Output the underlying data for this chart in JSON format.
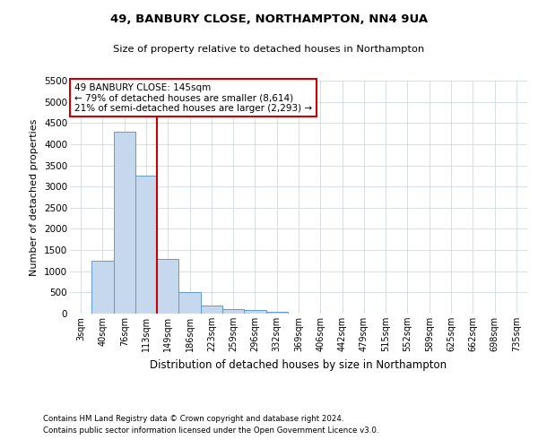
{
  "title_line1": "49, BANBURY CLOSE, NORTHAMPTON, NN4 9UA",
  "title_line2": "Size of property relative to detached houses in Northampton",
  "xlabel": "Distribution of detached houses by size in Northampton",
  "ylabel": "Number of detached properties",
  "categories": [
    "3sqm",
    "40sqm",
    "76sqm",
    "113sqm",
    "149sqm",
    "186sqm",
    "223sqm",
    "259sqm",
    "296sqm",
    "332sqm",
    "369sqm",
    "406sqm",
    "442sqm",
    "479sqm",
    "515sqm",
    "552sqm",
    "589sqm",
    "625sqm",
    "662sqm",
    "698sqm",
    "735sqm"
  ],
  "values": [
    0,
    1250,
    4300,
    3250,
    1300,
    500,
    200,
    100,
    75,
    50,
    0,
    0,
    0,
    0,
    0,
    0,
    0,
    0,
    0,
    0,
    0
  ],
  "bar_color": "#c5d8ed",
  "bar_edge_color": "#5b9bd5",
  "vline_color": "#cc0000",
  "vline_x_index": 3.5,
  "annotation_text": "49 BANBURY CLOSE: 145sqm\n← 79% of detached houses are smaller (8,614)\n21% of semi-detached houses are larger (2,293) →",
  "annotation_box_color": "#ffffff",
  "annotation_box_edge": "#cc0000",
  "ylim_max": 5500,
  "yticks": [
    0,
    500,
    1000,
    1500,
    2000,
    2500,
    3000,
    3500,
    4000,
    4500,
    5000,
    5500
  ],
  "background_color": "#ffffff",
  "grid_color": "#d0d8e4",
  "footer_line1": "Contains HM Land Registry data © Crown copyright and database right 2024.",
  "footer_line2": "Contains public sector information licensed under the Open Government Licence v3.0."
}
